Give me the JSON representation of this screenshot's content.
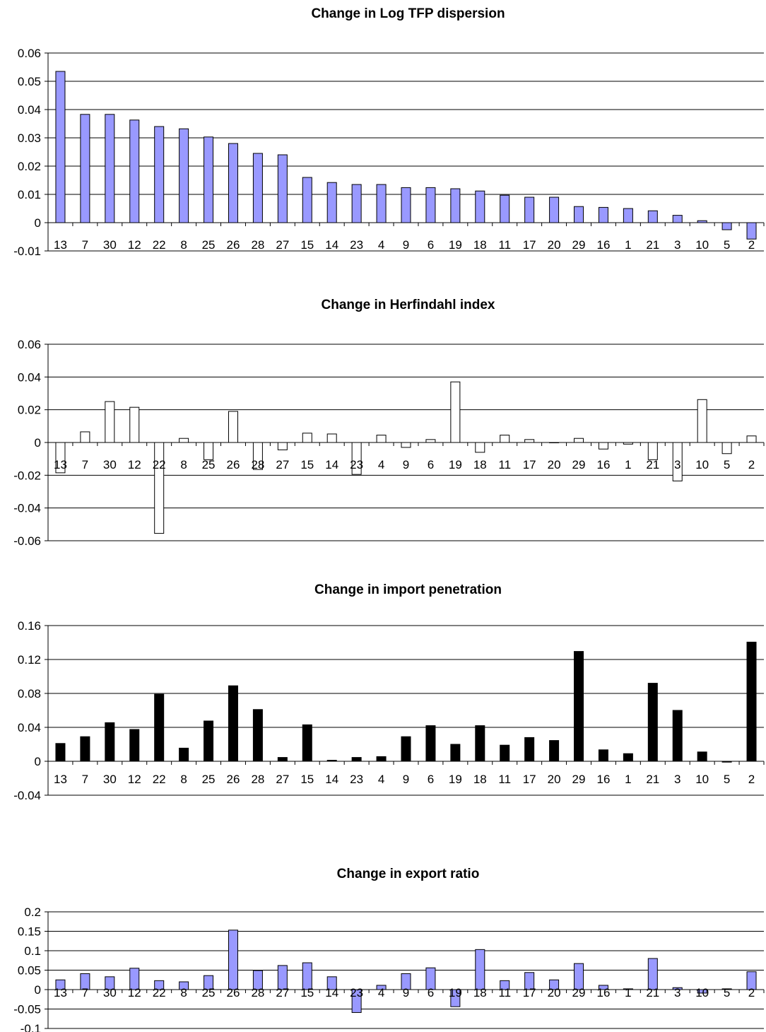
{
  "chart_data": [
    {
      "type": "bar",
      "title": "Change in Log TFP dispersion",
      "categories": [
        "13",
        "7",
        "30",
        "12",
        "22",
        "8",
        "25",
        "26",
        "28",
        "27",
        "15",
        "14",
        "23",
        "4",
        "9",
        "6",
        "19",
        "18",
        "11",
        "17",
        "20",
        "29",
        "16",
        "1",
        "21",
        "3",
        "10",
        "5",
        "2"
      ],
      "values": [
        0.0535,
        0.0383,
        0.0383,
        0.0363,
        0.034,
        0.0332,
        0.0303,
        0.028,
        0.0245,
        0.024,
        0.016,
        0.0142,
        0.0135,
        0.0135,
        0.0124,
        0.0124,
        0.012,
        0.0112,
        0.0097,
        0.009,
        0.009,
        0.0057,
        0.0054,
        0.005,
        0.0042,
        0.0026,
        0.0007,
        -0.0025,
        -0.0058
      ],
      "ylim": [
        -0.01,
        0.06
      ],
      "yticks": [
        -0.01,
        0,
        0.01,
        0.02,
        0.03,
        0.04,
        0.05,
        0.06
      ],
      "ytick_labels": [
        "-0.01",
        "0",
        "0.01",
        "0.02",
        "0.03",
        "0.04",
        "0.05",
        "0.06"
      ],
      "bar_color": "#9999ff",
      "grid": true
    },
    {
      "type": "bar",
      "title": "Change in Herfindahl index",
      "categories": [
        "13",
        "7",
        "30",
        "12",
        "22",
        "8",
        "25",
        "26",
        "28",
        "27",
        "15",
        "14",
        "23",
        "4",
        "9",
        "6",
        "19",
        "18",
        "11",
        "17",
        "20",
        "29",
        "16",
        "1",
        "21",
        "3",
        "10",
        "5",
        "2"
      ],
      "values": [
        -0.0185,
        0.0065,
        0.025,
        0.0215,
        -0.0555,
        0.0025,
        -0.0105,
        0.019,
        -0.0165,
        -0.0045,
        0.0057,
        0.0052,
        -0.0195,
        0.0045,
        -0.003,
        0.0018,
        0.037,
        -0.006,
        0.0045,
        0.0018,
        0.0,
        0.0025,
        -0.004,
        -0.001,
        -0.0105,
        -0.0235,
        0.0262,
        -0.0068,
        0.004
      ],
      "ylim": [
        -0.06,
        0.06
      ],
      "yticks": [
        -0.06,
        -0.04,
        -0.02,
        0,
        0.02,
        0.04,
        0.06
      ],
      "ytick_labels": [
        "-0.06",
        "-0.04",
        "-0.02",
        "0",
        "0.02",
        "0.04",
        "0.06"
      ],
      "bar_color": "#ffffff",
      "grid": true
    },
    {
      "type": "bar",
      "title": "Change in import penetration",
      "categories": [
        "13",
        "7",
        "30",
        "12",
        "22",
        "8",
        "25",
        "26",
        "28",
        "27",
        "15",
        "14",
        "23",
        "4",
        "9",
        "6",
        "19",
        "18",
        "11",
        "17",
        "20",
        "29",
        "16",
        "1",
        "21",
        "3",
        "10",
        "5",
        "2"
      ],
      "values": [
        0.021,
        0.029,
        0.0455,
        0.0375,
        0.079,
        0.0155,
        0.0475,
        0.089,
        0.061,
        0.0045,
        0.043,
        0.0012,
        0.0045,
        0.0055,
        0.029,
        0.042,
        0.02,
        0.042,
        0.019,
        0.028,
        0.0245,
        0.1295,
        0.0135,
        0.009,
        0.092,
        0.06,
        0.011,
        -0.001,
        0.1405
      ],
      "ylim": [
        -0.04,
        0.16
      ],
      "yticks": [
        -0.04,
        0,
        0.04,
        0.08,
        0.12,
        0.16
      ],
      "ytick_labels": [
        "-0.04",
        "0",
        "0.04",
        "0.08",
        "0.12",
        "0.16"
      ],
      "bar_color": "#000000",
      "grid": true
    },
    {
      "type": "bar",
      "title": "Change in export ratio",
      "categories": [
        "13",
        "7",
        "30",
        "12",
        "22",
        "8",
        "25",
        "26",
        "28",
        "27",
        "15",
        "14",
        "23",
        "4",
        "9",
        "6",
        "19",
        "18",
        "11",
        "17",
        "20",
        "29",
        "16",
        "1",
        "21",
        "3",
        "10",
        "5",
        "2"
      ],
      "values": [
        0.025,
        0.041,
        0.033,
        0.055,
        0.023,
        0.02,
        0.036,
        0.153,
        0.049,
        0.062,
        0.069,
        0.033,
        -0.059,
        0.011,
        0.041,
        0.056,
        -0.044,
        0.103,
        0.023,
        0.044,
        0.025,
        0.067,
        0.011,
        0.002,
        0.08,
        0.005,
        -0.009,
        0.002,
        0.046
      ],
      "ylim": [
        -0.1,
        0.2
      ],
      "yticks": [
        -0.1,
        -0.05,
        0,
        0.05,
        0.1,
        0.15,
        0.2
      ],
      "ytick_labels": [
        "-0.1",
        "-0.05",
        "0",
        "0.05",
        "0.1",
        "0.15",
        "0.2"
      ],
      "bar_color": "#9999ff",
      "grid": true
    }
  ]
}
